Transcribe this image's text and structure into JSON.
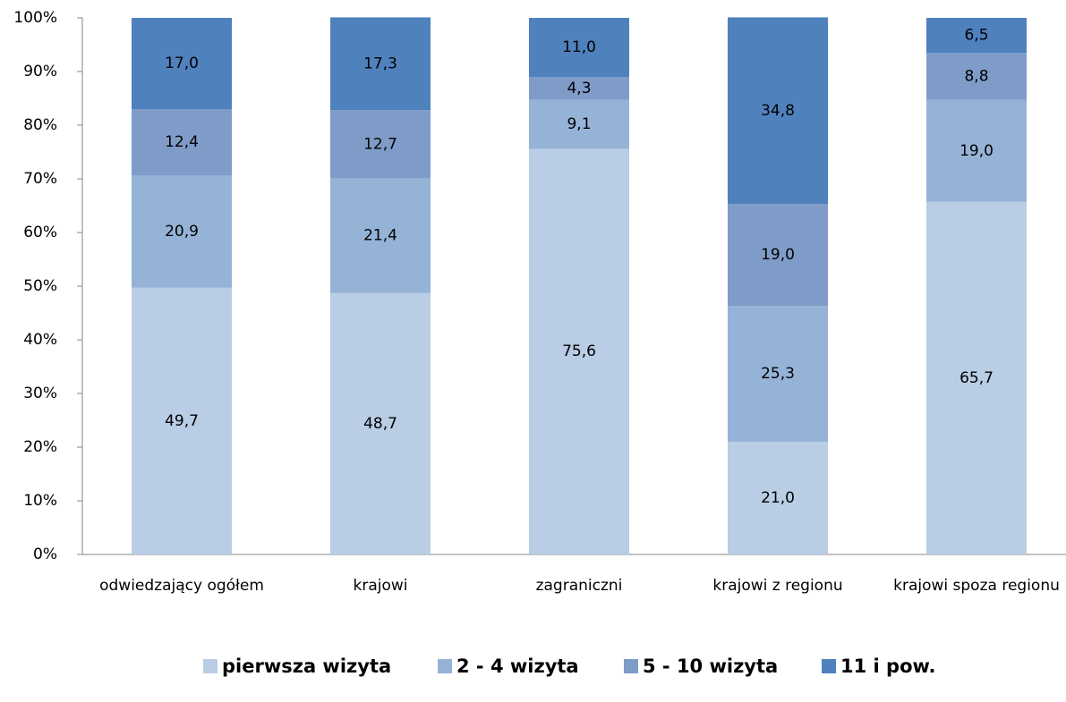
{
  "chart_data": {
    "type": "stacked_bar",
    "categories": [
      "odwiedzający ogółem",
      "krajowi",
      "zagraniczni",
      "krajowi z regionu",
      "krajowi spoza regionu"
    ],
    "series": [
      {
        "name": "pierwsza wizyta",
        "color": "#b9cde5",
        "values": [
          49.7,
          48.7,
          75.6,
          21.0,
          65.7
        ],
        "value_labels": [
          "49,7",
          "48,7",
          "75,6",
          "21,0",
          "65,7"
        ]
      },
      {
        "name": "2 - 4 wizyta",
        "color": "#95b3d7",
        "values": [
          20.9,
          21.4,
          9.1,
          25.3,
          19.0
        ],
        "value_labels": [
          "20,9",
          "21,4",
          "9,1",
          "25,3",
          "19,0"
        ]
      },
      {
        "name": "5 - 10 wizyta",
        "color": "#7f9cc9",
        "values": [
          12.4,
          12.7,
          4.3,
          19.0,
          8.8
        ],
        "value_labels": [
          "12,4",
          "12,7",
          "4,3",
          "19,0",
          "8,8"
        ]
      },
      {
        "name": "11 i pow.",
        "color": "#4f81bd",
        "values": [
          17.0,
          17.3,
          11.0,
          34.8,
          6.5
        ],
        "value_labels": [
          "17,0",
          "17,3",
          "11,0",
          "34,8",
          "6,5"
        ]
      }
    ],
    "ylim": [
      0,
      100
    ],
    "yticks": [
      {
        "value": 0,
        "label": "0%"
      },
      {
        "value": 10,
        "label": "10%"
      },
      {
        "value": 20,
        "label": "20%"
      },
      {
        "value": 30,
        "label": "30%"
      },
      {
        "value": 40,
        "label": "40%"
      },
      {
        "value": 50,
        "label": "50%"
      },
      {
        "value": 60,
        "label": "60%"
      },
      {
        "value": 70,
        "label": "70%"
      },
      {
        "value": 80,
        "label": "80%"
      },
      {
        "value": 90,
        "label": "90%"
      },
      {
        "value": 100,
        "label": "100%"
      }
    ],
    "legend": "bottom"
  }
}
